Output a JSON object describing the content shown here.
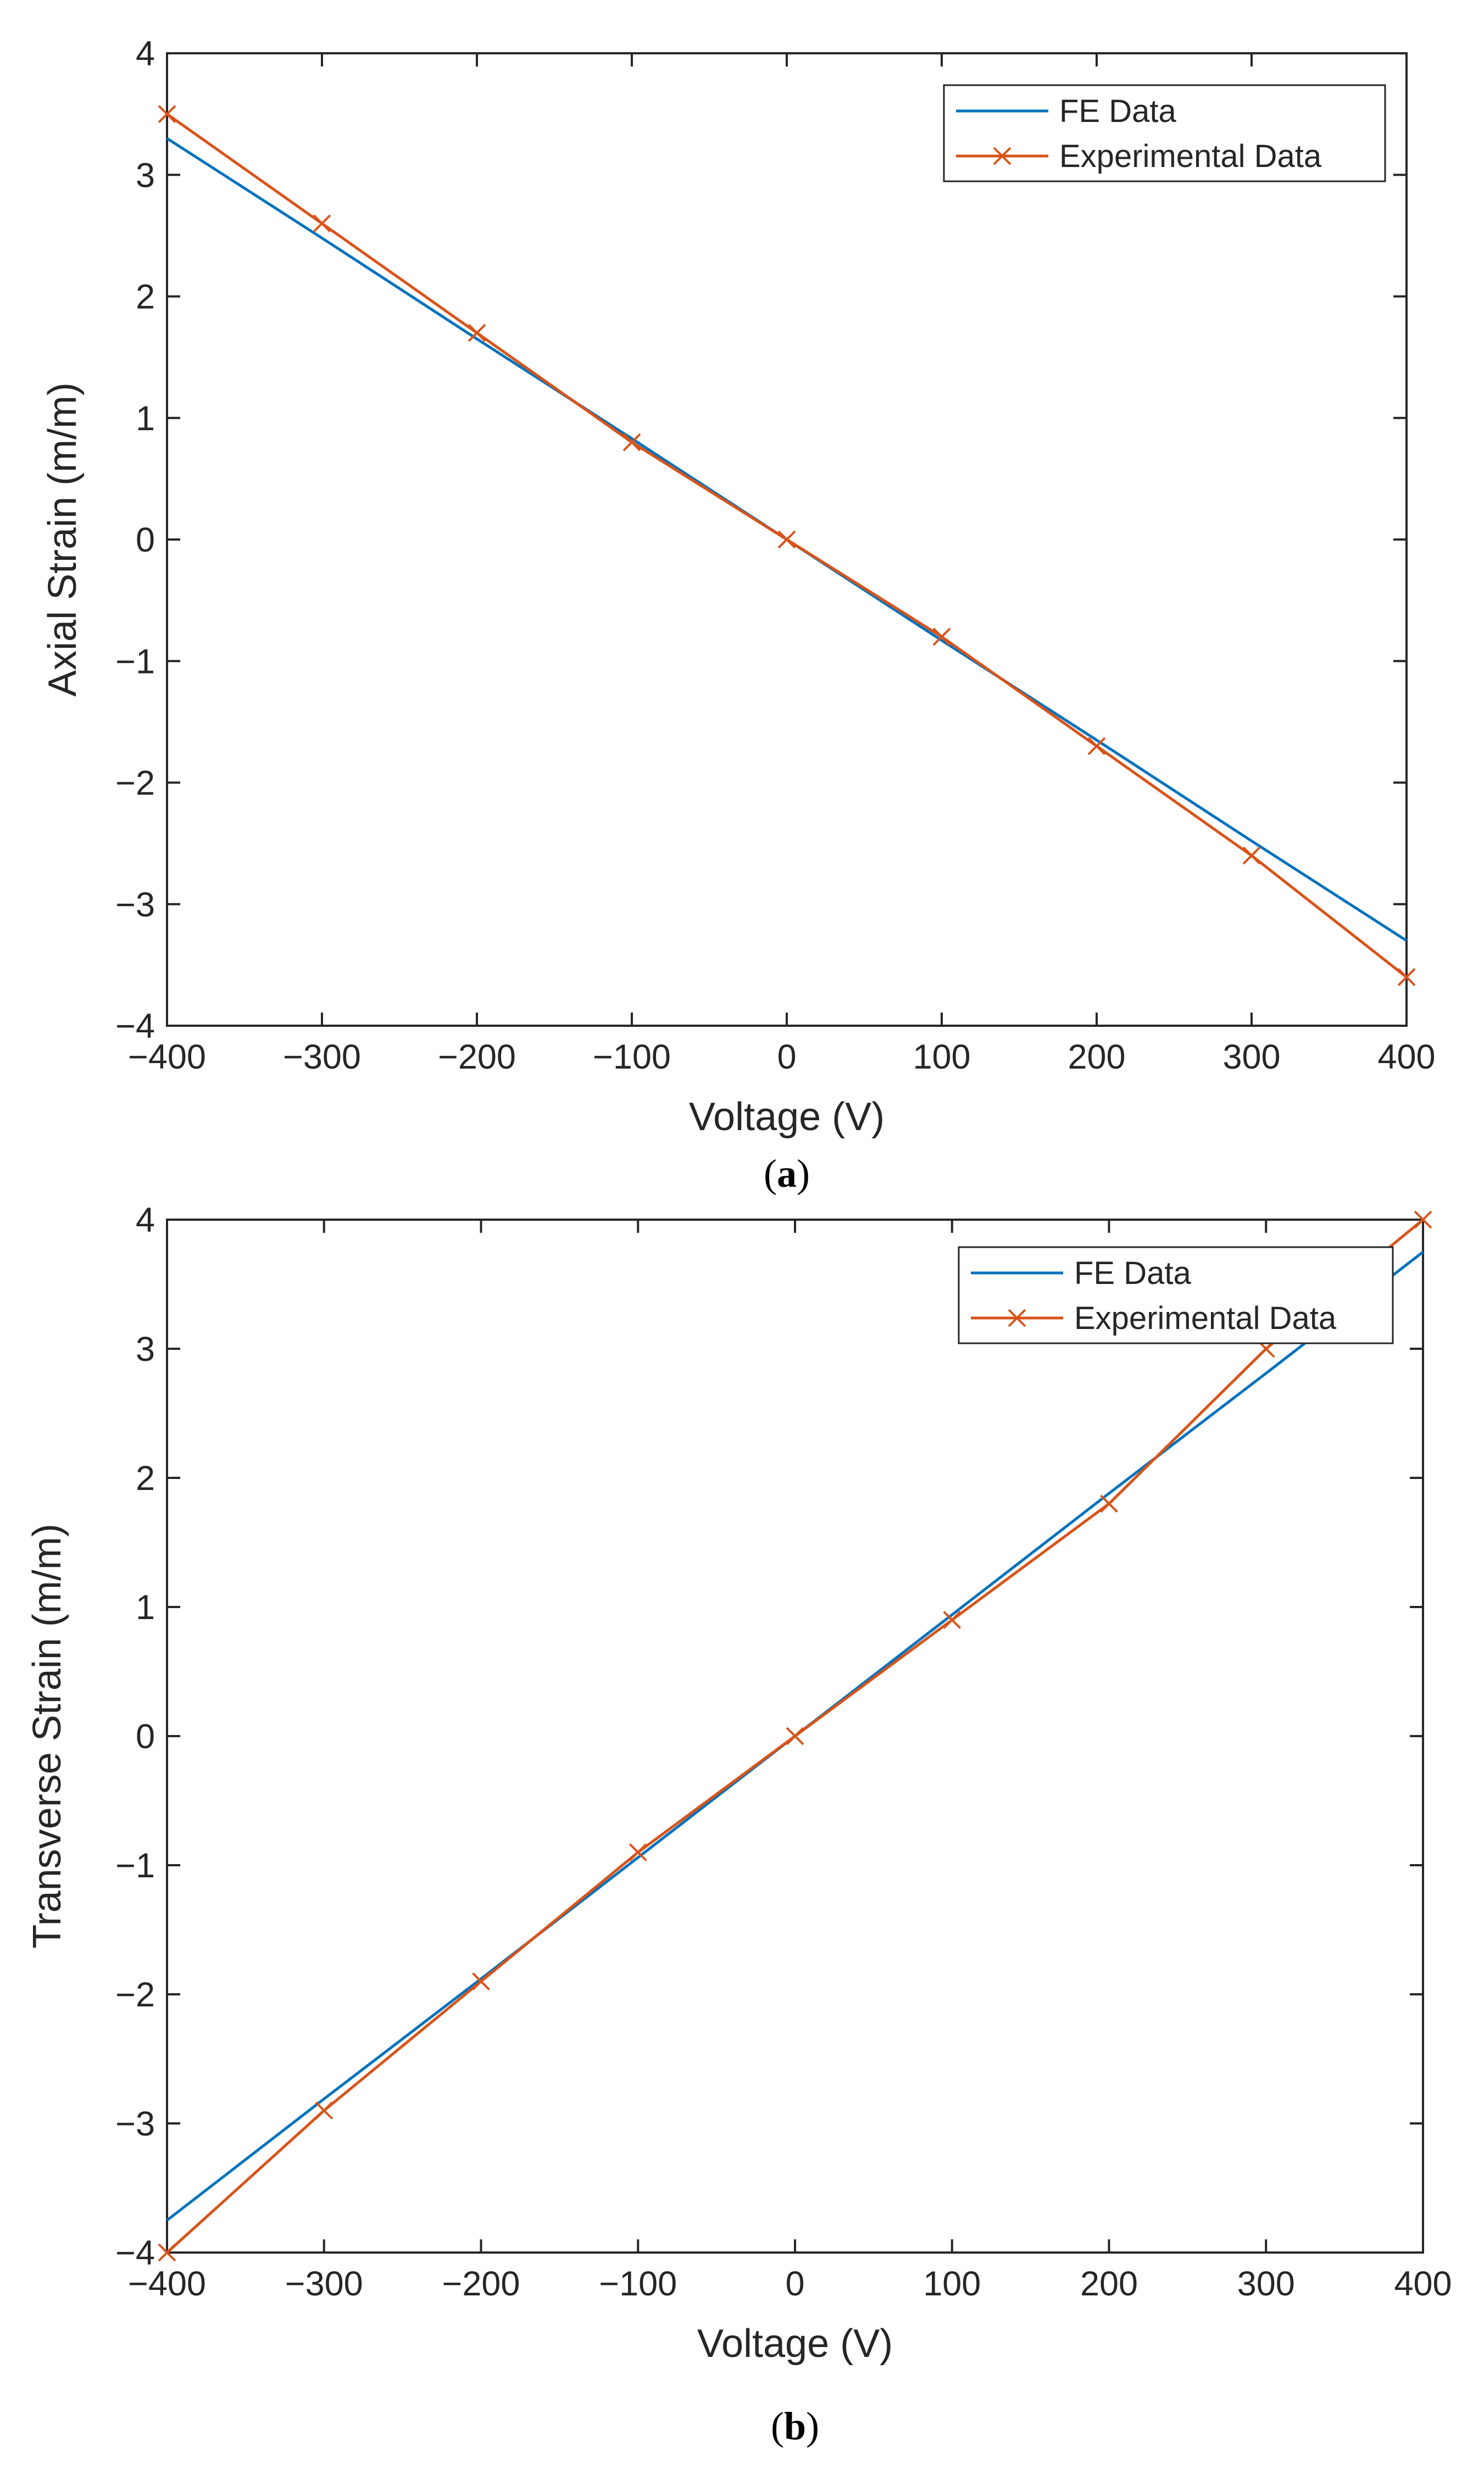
{
  "colors": {
    "fe": "#0072BD",
    "experimental": "#D95319",
    "axes": "#262626"
  },
  "chart_data": [
    {
      "type": "line",
      "panel_label": "a",
      "title": "",
      "xlabel": "Voltage (V)",
      "ylabel": "Axial Strain (m/m)",
      "xlim": [
        -400,
        400
      ],
      "ylim": [
        -4,
        4
      ],
      "xticks": [
        -400,
        -300,
        -200,
        -100,
        0,
        100,
        200,
        300,
        400
      ],
      "yticks": [
        -4,
        -3,
        -2,
        -1,
        0,
        1,
        2,
        3,
        4
      ],
      "xtick_labels": [
        "−400",
        "−300",
        "−200",
        "−100",
        "0",
        "100",
        "200",
        "300",
        "400"
      ],
      "ytick_labels": [
        "−4",
        "−3",
        "−2",
        "−1",
        "0",
        "1",
        "2",
        "3",
        "4"
      ],
      "grid": false,
      "legend_position": "top-right",
      "series": [
        {
          "name": "FE Data",
          "color": "#0072BD",
          "marker": "none",
          "x": [
            -400,
            -300,
            -200,
            -100,
            0,
            100,
            200,
            300,
            400
          ],
          "y": [
            3.3,
            2.48,
            1.65,
            0.83,
            0,
            -0.83,
            -1.65,
            -2.48,
            -3.3
          ]
        },
        {
          "name": "Experimental Data",
          "color": "#D95319",
          "marker": "x",
          "x": [
            -400,
            -300,
            -200,
            -100,
            0,
            100,
            200,
            300,
            400
          ],
          "y": [
            3.5,
            2.6,
            1.7,
            0.8,
            0,
            -0.8,
            -1.7,
            -2.6,
            -3.6
          ]
        }
      ]
    },
    {
      "type": "line",
      "panel_label": "b",
      "title": "",
      "xlabel": "Voltage (V)",
      "ylabel": "Transverse Strain (m/m)",
      "xlim": [
        -400,
        400
      ],
      "ylim": [
        -4,
        4
      ],
      "xticks": [
        -400,
        -300,
        -200,
        -100,
        0,
        100,
        200,
        300,
        400
      ],
      "yticks": [
        -4,
        -3,
        -2,
        -1,
        0,
        1,
        2,
        3,
        4
      ],
      "xtick_labels": [
        "−400",
        "−300",
        "−200",
        "−100",
        "0",
        "100",
        "200",
        "300",
        "400"
      ],
      "ytick_labels": [
        "−4",
        "−3",
        "−2",
        "−1",
        "0",
        "1",
        "2",
        "3",
        "4"
      ],
      "grid": false,
      "legend_position": "top-right",
      "series": [
        {
          "name": "FE Data",
          "color": "#0072BD",
          "marker": "none",
          "x": [
            -400,
            -300,
            -200,
            -100,
            0,
            100,
            200,
            300,
            400
          ],
          "y": [
            -3.75,
            -2.81,
            -1.88,
            -0.94,
            0,
            0.94,
            1.88,
            2.81,
            3.75
          ]
        },
        {
          "name": "Experimental Data",
          "color": "#D95319",
          "marker": "x",
          "x": [
            -400,
            -300,
            -200,
            -100,
            0,
            100,
            200,
            300,
            400
          ],
          "y": [
            -4,
            -2.9,
            -1.9,
            -0.9,
            0,
            0.9,
            1.8,
            3.0,
            4.0
          ]
        }
      ]
    }
  ]
}
